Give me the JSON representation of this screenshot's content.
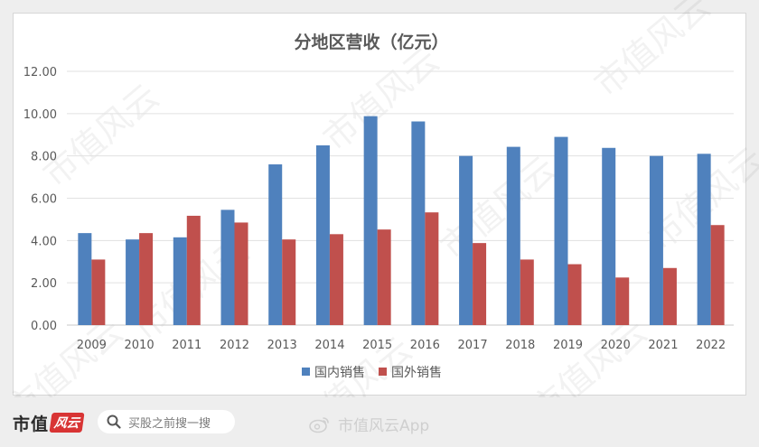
{
  "chart_data": {
    "type": "bar",
    "title": "分地区营收（亿元）",
    "categories": [
      "2009",
      "2010",
      "2011",
      "2012",
      "2013",
      "2014",
      "2015",
      "2016",
      "2017",
      "2018",
      "2019",
      "2020",
      "2021",
      "2022"
    ],
    "series": [
      {
        "name": "国内销售",
        "color": "#4f81bd",
        "values": [
          4.35,
          4.05,
          4.15,
          5.45,
          7.6,
          8.5,
          9.88,
          9.63,
          8.0,
          8.43,
          8.9,
          8.38,
          8.0,
          8.1
        ]
      },
      {
        "name": "国外销售",
        "color": "#c0504d",
        "values": [
          3.1,
          4.35,
          5.17,
          4.85,
          4.05,
          4.3,
          4.52,
          5.33,
          3.88,
          3.1,
          2.88,
          2.25,
          2.7,
          4.73
        ]
      }
    ],
    "ylim": [
      0,
      12
    ],
    "ytick_labels": [
      "0.00",
      "2.00",
      "4.00",
      "6.00",
      "8.00",
      "10.00",
      "12.00"
    ],
    "grid": true,
    "legend_position": "bottom"
  },
  "watermark": "市值风云",
  "footer": {
    "brand": "市值",
    "brand_mark": "风云",
    "search_placeholder": "买股之前搜一搜",
    "weibo_label": "市值风云App",
    "brand_color": "#d83434"
  },
  "icons": {
    "search": "magnifier-icon",
    "weibo": "weibo-icon"
  }
}
